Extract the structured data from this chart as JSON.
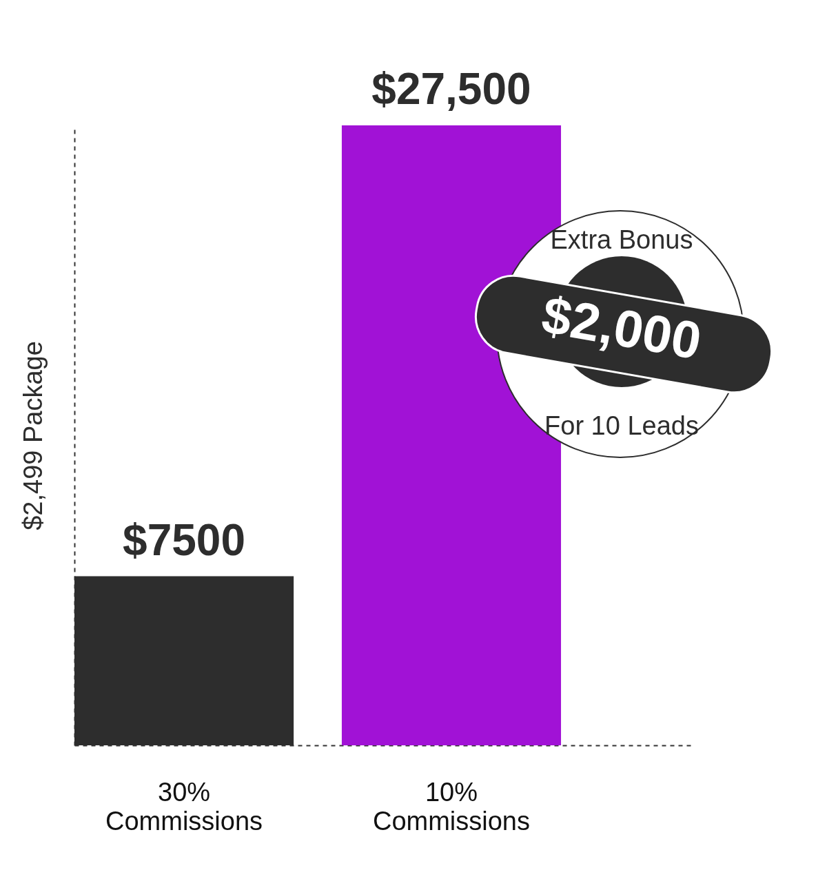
{
  "chart_data": {
    "type": "bar",
    "categories": [
      "30% Commissions",
      "10% Commissions"
    ],
    "values": [
      7500,
      27500
    ],
    "colors": [
      "#2d2d2d",
      "#a112d6"
    ],
    "value_labels": [
      "$7500",
      "$27,500"
    ],
    "ylabel": "$2,499 Package",
    "tick_labels": "x",
    "grid": false,
    "annotations": [
      "Extra Bonus",
      "$2,000",
      "For 10 Leads"
    ]
  }
}
